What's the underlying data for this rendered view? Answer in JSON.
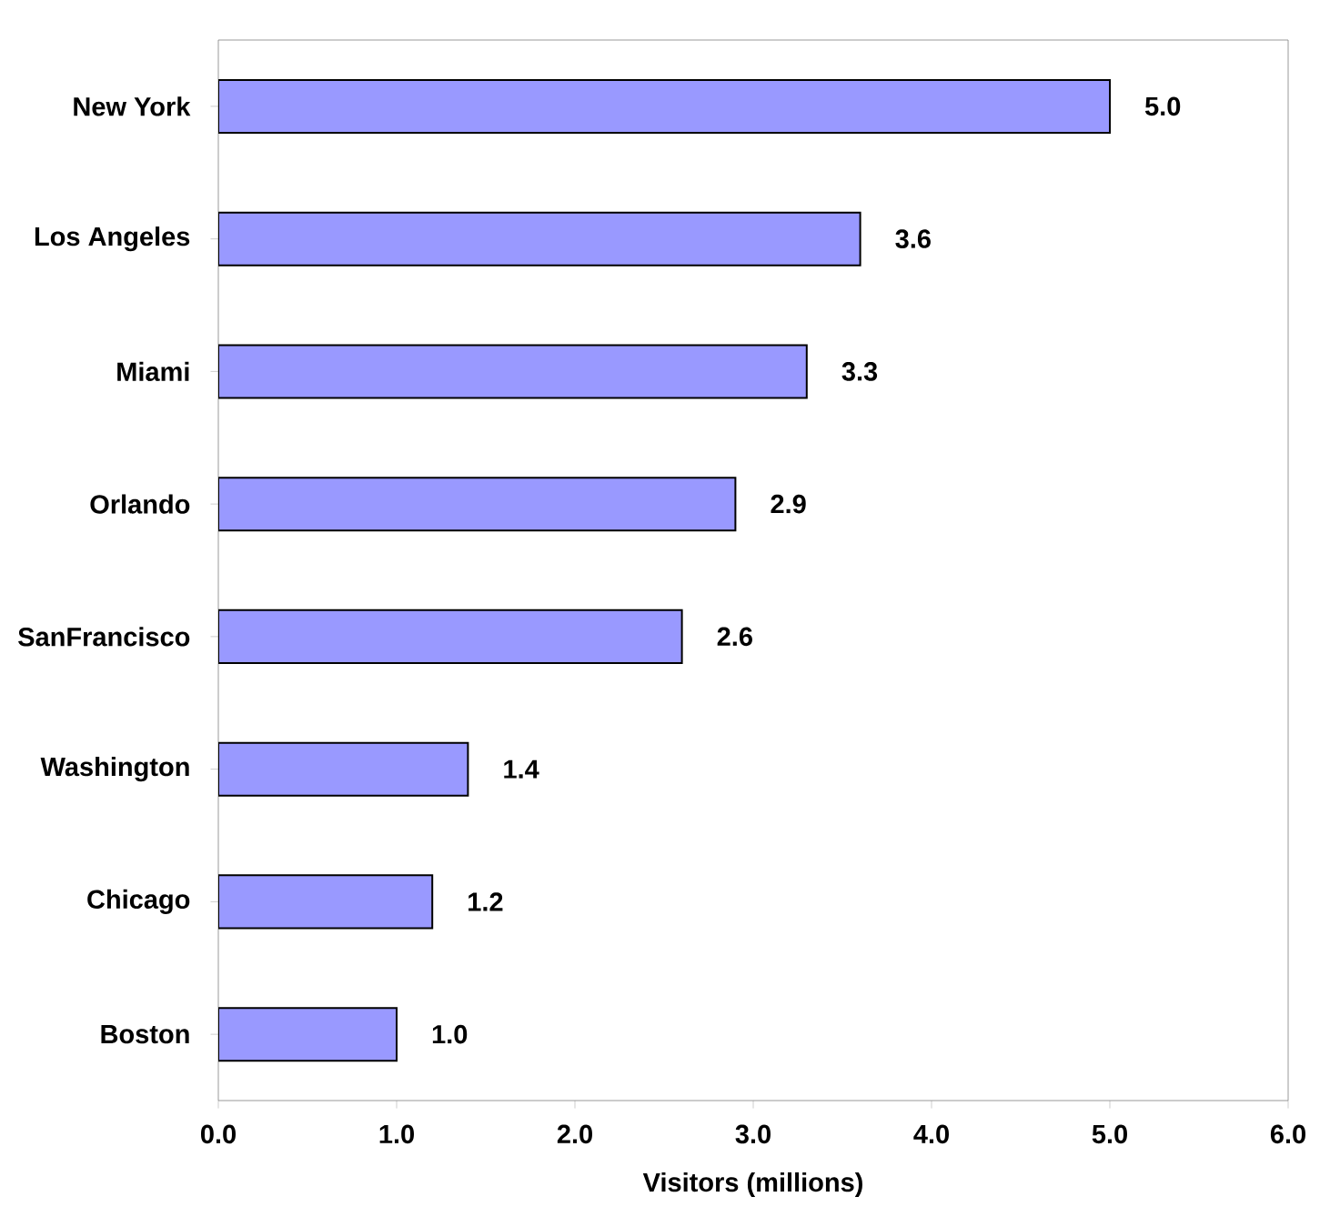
{
  "chart_data": {
    "type": "bar",
    "orientation": "horizontal",
    "xlabel": "Visitors (millions)",
    "categories": [
      "New York",
      "Los Angeles",
      "Miami",
      "Orlando",
      "SanFrancisco",
      "Washington",
      "Chicago",
      "Boston"
    ],
    "values": [
      5.0,
      3.6,
      3.3,
      2.9,
      2.6,
      1.4,
      1.2,
      1.0
    ],
    "value_labels": [
      "5.0",
      "3.6",
      "3.3",
      "2.9",
      "2.6",
      "1.4",
      "1.2",
      "1.0"
    ],
    "color": "#9999ff",
    "xlim": [
      0,
      6
    ],
    "xticks": [
      {
        "value": 0,
        "label": "0.0"
      },
      {
        "value": 1,
        "label": "1.0"
      },
      {
        "value": 2,
        "label": "2.0"
      },
      {
        "value": 3,
        "label": "3.0"
      },
      {
        "value": 4,
        "label": "4.0"
      },
      {
        "value": 5,
        "label": "5.0"
      },
      {
        "value": 6,
        "label": "6.0"
      }
    ]
  }
}
